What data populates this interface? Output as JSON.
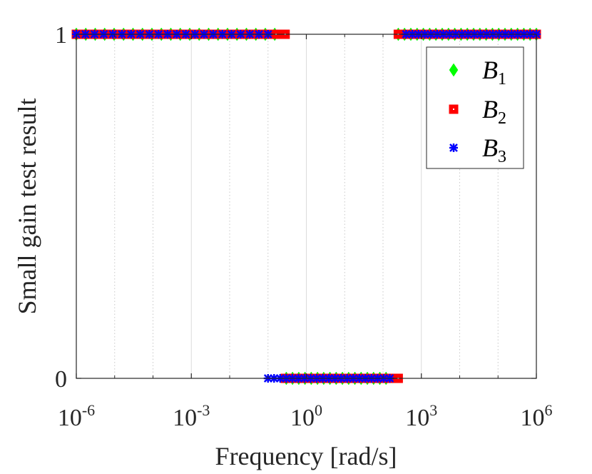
{
  "chart_data": {
    "type": "scatter",
    "xscale": "log",
    "xlim": [
      1e-06,
      1000000.0
    ],
    "ylim": [
      0,
      1
    ],
    "xlabel": "Frequency [rad/s]",
    "ylabel": "Small gain test result",
    "x_tick_bases": [
      "10",
      "10",
      "10",
      "10",
      "10"
    ],
    "x_tick_exponents": [
      "-6",
      "-3",
      "0",
      "3",
      "6"
    ],
    "x_tick_values": [
      1e-06,
      0.001,
      1,
      1000.0,
      1000000.0
    ],
    "y_tick_labels": [
      "0",
      "1"
    ],
    "y_tick_values": [
      0,
      1
    ],
    "x_minor_grid": [
      1e-05,
      0.0001,
      0.01,
      0.1,
      10.0,
      100.0,
      10000.0,
      100000.0
    ],
    "legend_position": "top-right",
    "series": [
      {
        "name": "B1",
        "legend_main": "B",
        "legend_sub": "1",
        "marker": "diamond",
        "color": "#00ff00",
        "segments": [
          {
            "x_from": 1e-06,
            "x_to": 0.15,
            "count": 22,
            "y": 1
          },
          {
            "x_from": 0.3,
            "x_to": 120,
            "count": 17,
            "y": 0
          },
          {
            "x_from": 250,
            "x_to": 1000000.0,
            "count": 23,
            "y": 1
          }
        ]
      },
      {
        "name": "B2",
        "legend_main": "B",
        "legend_sub": "2",
        "marker": "square",
        "color": "#ff0000",
        "segments": [
          {
            "x_from": 1e-06,
            "x_to": 0.28,
            "count": 24,
            "y": 1
          },
          {
            "x_from": 0.28,
            "x_to": 250,
            "count": 21,
            "y": 0
          },
          {
            "x_from": 250,
            "x_to": 1000000.0,
            "count": 23,
            "y": 1
          }
        ]
      },
      {
        "name": "B3",
        "legend_main": "B",
        "legend_sub": "3",
        "marker": "asterisk",
        "color": "#0000ff",
        "segments": [
          {
            "x_from": 1e-06,
            "x_to": 0.1,
            "count": 22,
            "y": 1
          },
          {
            "x_from": 0.1,
            "x_to": 150,
            "count": 21,
            "y": 0
          },
          {
            "x_from": 400,
            "x_to": 1000000.0,
            "count": 22,
            "y": 1
          }
        ]
      }
    ]
  }
}
